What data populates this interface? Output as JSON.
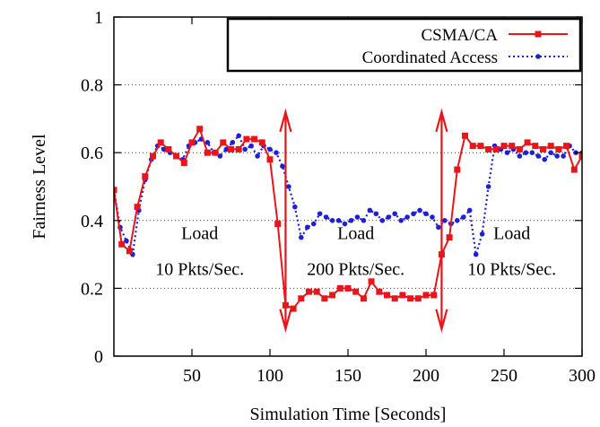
{
  "chart_data": {
    "type": "line",
    "xlabel": "Simulation Time [Seconds]",
    "ylabel": "Fairness Level",
    "xlim": [
      0,
      300
    ],
    "ylim": [
      0,
      1
    ],
    "x_ticks": [
      50,
      100,
      150,
      200,
      250,
      300
    ],
    "y_ticks": [
      0,
      0.2,
      0.4,
      0.6,
      0.8,
      1
    ],
    "grid": "horizontal dotted",
    "legend_position": "top-right",
    "series": [
      {
        "name": "CSMA/CA",
        "color": "#e8161b",
        "style": "solid",
        "marker": "square",
        "x": [
          0,
          5,
          10,
          15,
          20,
          25,
          30,
          35,
          40,
          45,
          50,
          55,
          60,
          65,
          70,
          75,
          80,
          85,
          90,
          95,
          100,
          105,
          110,
          115,
          120,
          125,
          130,
          135,
          140,
          145,
          150,
          155,
          160,
          165,
          170,
          175,
          180,
          185,
          190,
          195,
          200,
          205,
          210,
          215,
          220,
          225,
          230,
          235,
          240,
          245,
          250,
          255,
          260,
          265,
          270,
          275,
          280,
          285,
          290,
          295,
          300
        ],
        "y": [
          0.49,
          0.33,
          0.31,
          0.44,
          0.53,
          0.59,
          0.63,
          0.61,
          0.59,
          0.57,
          0.63,
          0.67,
          0.6,
          0.6,
          0.63,
          0.61,
          0.61,
          0.64,
          0.64,
          0.63,
          0.58,
          0.39,
          0.15,
          0.14,
          0.17,
          0.19,
          0.19,
          0.17,
          0.18,
          0.2,
          0.2,
          0.19,
          0.17,
          0.22,
          0.19,
          0.18,
          0.17,
          0.18,
          0.17,
          0.17,
          0.18,
          0.18,
          0.3,
          0.35,
          0.55,
          0.65,
          0.62,
          0.62,
          0.61,
          0.61,
          0.62,
          0.62,
          0.61,
          0.63,
          0.62,
          0.61,
          0.62,
          0.61,
          0.62,
          0.55,
          0.59
        ]
      },
      {
        "name": "Coordinated Access",
        "color": "#1f1fd6",
        "style": "dotted",
        "marker": "circle",
        "x": [
          0,
          4,
          8,
          12,
          16,
          20,
          24,
          28,
          32,
          36,
          40,
          44,
          48,
          52,
          56,
          60,
          64,
          68,
          72,
          76,
          80,
          84,
          88,
          92,
          96,
          100,
          104,
          108,
          112,
          116,
          120,
          124,
          128,
          132,
          136,
          140,
          144,
          148,
          152,
          156,
          160,
          164,
          168,
          172,
          176,
          180,
          184,
          188,
          192,
          196,
          200,
          204,
          208,
          212,
          216,
          220,
          224,
          228,
          232,
          236,
          240,
          244,
          248,
          252,
          256,
          260,
          264,
          268,
          272,
          276,
          280,
          284,
          288,
          292,
          296,
          300
        ],
        "y": [
          0.49,
          0.38,
          0.34,
          0.3,
          0.43,
          0.52,
          0.58,
          0.62,
          0.61,
          0.6,
          0.59,
          0.58,
          0.62,
          0.63,
          0.64,
          0.63,
          0.6,
          0.59,
          0.61,
          0.63,
          0.65,
          0.61,
          0.62,
          0.59,
          0.62,
          0.61,
          0.6,
          0.56,
          0.5,
          0.44,
          0.35,
          0.38,
          0.39,
          0.42,
          0.41,
          0.4,
          0.4,
          0.39,
          0.4,
          0.41,
          0.4,
          0.43,
          0.42,
          0.4,
          0.41,
          0.42,
          0.4,
          0.41,
          0.42,
          0.43,
          0.42,
          0.41,
          0.38,
          0.4,
          0.39,
          0.4,
          0.41,
          0.43,
          0.3,
          0.36,
          0.5,
          0.62,
          0.61,
          0.6,
          0.61,
          0.59,
          0.6,
          0.6,
          0.59,
          0.58,
          0.6,
          0.59,
          0.59,
          0.62,
          0.6,
          0.6
        ]
      }
    ],
    "arrows": [
      {
        "x": 110,
        "y_from": 0.08,
        "y_to": 0.72,
        "color": "#e8161b"
      },
      {
        "x": 210,
        "y_from": 0.08,
        "y_to": 0.72,
        "color": "#e8161b"
      }
    ],
    "annotations": [
      {
        "x": 55,
        "y": 0.345,
        "line1": "Load",
        "line2": "10 Pkts/Sec."
      },
      {
        "x": 155,
        "y": 0.345,
        "line1": "Load",
        "line2": "200 Pkts/Sec."
      },
      {
        "x": 255,
        "y": 0.345,
        "line1": "Load",
        "line2": "10 Pkts/Sec."
      }
    ]
  }
}
